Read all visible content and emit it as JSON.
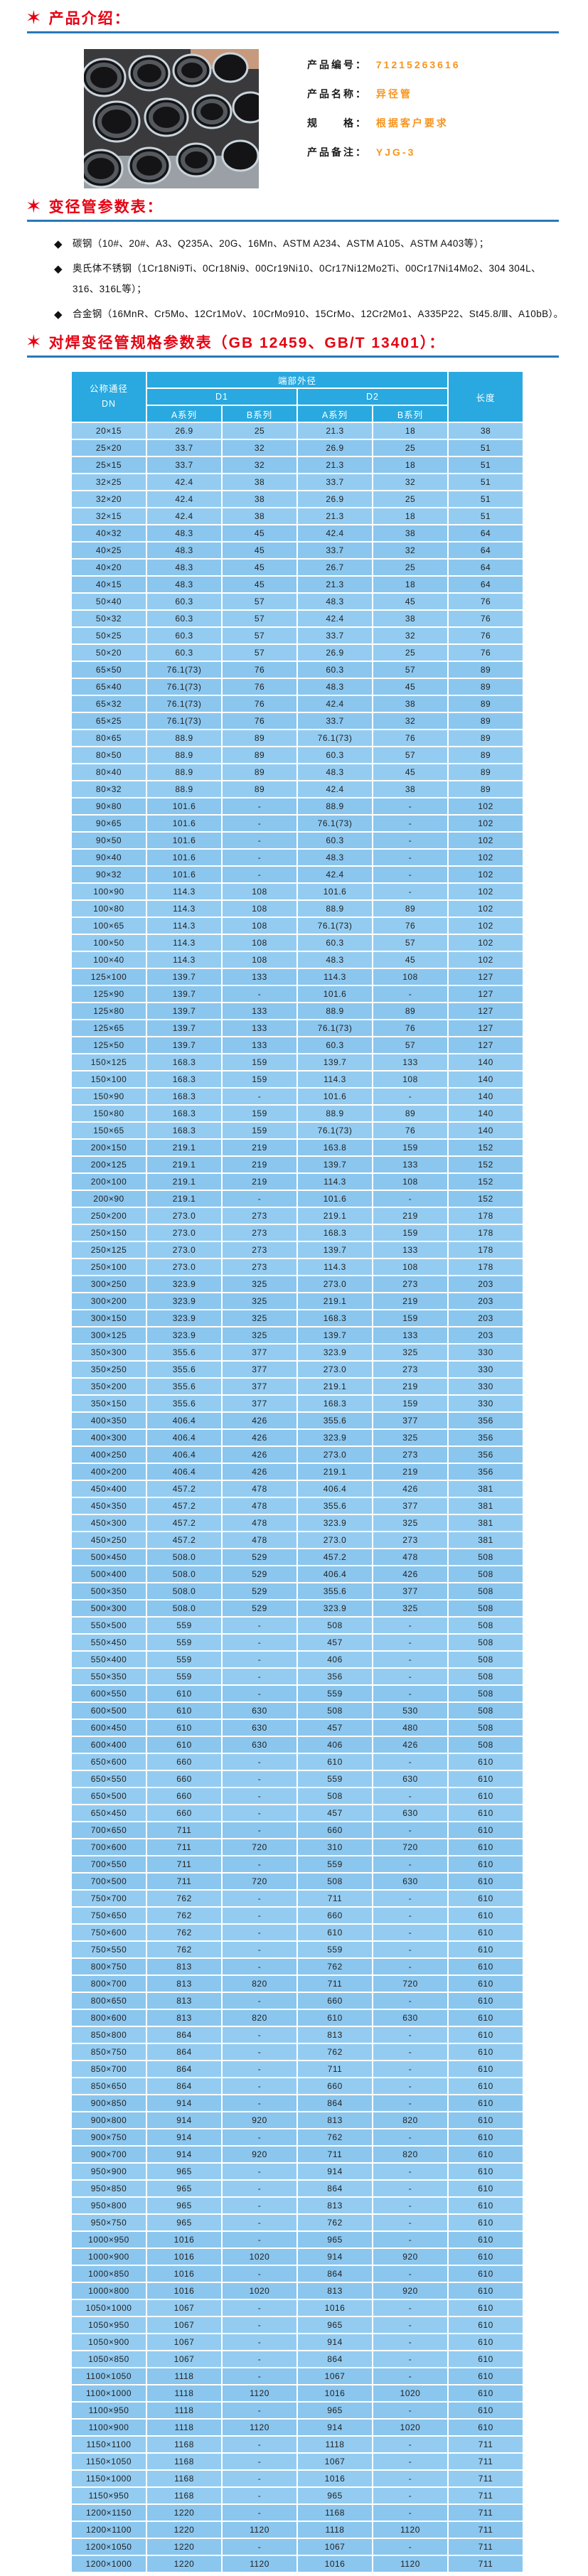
{
  "colors": {
    "title_red": "#e60012",
    "rule_blue": "#2878b8",
    "value_orange": "#f7941d",
    "table_header_blue": "#29a9e0",
    "table_row_blue": "#92cbf0"
  },
  "section_intro": {
    "star_icon": "✶",
    "title": "产品介绍："
  },
  "product": {
    "fields": [
      {
        "label": "产品编号：",
        "value": "71215263616"
      },
      {
        "label": "产品名称：",
        "value": "异径管"
      },
      {
        "label": "规　　格：",
        "value": "根据客户要求"
      },
      {
        "label": "产品备注：",
        "value": "YJG-3"
      }
    ]
  },
  "section_params": {
    "star_icon": "✶",
    "title": "变径管参数表：",
    "bullet_marker": "◆",
    "bullets": [
      "碳钢（10#、20#、A3、Q235A、20G、16Mn、ASTM A234、ASTM A105、ASTM A403等）；",
      "奥氏体不锈钢（1Cr18Ni9Ti、0Cr18Ni9、00Cr19Ni10、0Cr17Ni12Mo2Ti、00Cr17Ni14Mo2、304 304L、316、316L等）；",
      "合金钢（16MnR、Cr5Mo、12Cr1MoV、10CrMo910、15CrMo、12Cr2Mo1、A335P22、St45.8/Ⅲ、A10bB）。"
    ]
  },
  "section_spec": {
    "star_icon": "✶",
    "title": "对焊变径管规格参数表（GB 12459、GB/T 13401）：",
    "table": {
      "col_dn_line1": "公称通径",
      "col_dn_line2": "DN",
      "col_group_title": "端部外径",
      "col_d1": "D1",
      "col_d2": "D2",
      "col_series_a1": "A系列",
      "col_series_b1": "B系列",
      "col_series_a2": "A系列",
      "col_series_b2": "B系列",
      "col_length": "长度",
      "rows": [
        [
          "20×15",
          "26.9",
          "25",
          "21.3",
          "18",
          "38"
        ],
        [
          "25×20",
          "33.7",
          "32",
          "26.9",
          "25",
          "51"
        ],
        [
          "25×15",
          "33.7",
          "32",
          "21.3",
          "18",
          "51"
        ],
        [
          "32×25",
          "42.4",
          "38",
          "33.7",
          "32",
          "51"
        ],
        [
          "32×20",
          "42.4",
          "38",
          "26.9",
          "25",
          "51"
        ],
        [
          "32×15",
          "42.4",
          "38",
          "21.3",
          "18",
          "51"
        ],
        [
          "40×32",
          "48.3",
          "45",
          "42.4",
          "38",
          "64"
        ],
        [
          "40×25",
          "48.3",
          "45",
          "33.7",
          "32",
          "64"
        ],
        [
          "40×20",
          "48.3",
          "45",
          "26.7",
          "25",
          "64"
        ],
        [
          "40×15",
          "48.3",
          "45",
          "21.3",
          "18",
          "64"
        ],
        [
          "50×40",
          "60.3",
          "57",
          "48.3",
          "45",
          "76"
        ],
        [
          "50×32",
          "60.3",
          "57",
          "42.4",
          "38",
          "76"
        ],
        [
          "50×25",
          "60.3",
          "57",
          "33.7",
          "32",
          "76"
        ],
        [
          "50×20",
          "60.3",
          "57",
          "26.9",
          "25",
          "76"
        ],
        [
          "65×50",
          "76.1(73)",
          "76",
          "60.3",
          "57",
          "89"
        ],
        [
          "65×40",
          "76.1(73)",
          "76",
          "48.3",
          "45",
          "89"
        ],
        [
          "65×32",
          "76.1(73)",
          "76",
          "42.4",
          "38",
          "89"
        ],
        [
          "65×25",
          "76.1(73)",
          "76",
          "33.7",
          "32",
          "89"
        ],
        [
          "80×65",
          "88.9",
          "89",
          "76.1(73)",
          "76",
          "89"
        ],
        [
          "80×50",
          "88.9",
          "89",
          "60.3",
          "57",
          "89"
        ],
        [
          "80×40",
          "88.9",
          "89",
          "48.3",
          "45",
          "89"
        ],
        [
          "80×32",
          "88.9",
          "89",
          "42.4",
          "38",
          "89"
        ],
        [
          "90×80",
          "101.6",
          "-",
          "88.9",
          "-",
          "102"
        ],
        [
          "90×65",
          "101.6",
          "-",
          "76.1(73)",
          "-",
          "102"
        ],
        [
          "90×50",
          "101.6",
          "-",
          "60.3",
          "-",
          "102"
        ],
        [
          "90×40",
          "101.6",
          "-",
          "48.3",
          "-",
          "102"
        ],
        [
          "90×32",
          "101.6",
          "-",
          "42.4",
          "-",
          "102"
        ],
        [
          "100×90",
          "114.3",
          "108",
          "101.6",
          "-",
          "102"
        ],
        [
          "100×80",
          "114.3",
          "108",
          "88.9",
          "89",
          "102"
        ],
        [
          "100×65",
          "114.3",
          "108",
          "76.1(73)",
          "76",
          "102"
        ],
        [
          "100×50",
          "114.3",
          "108",
          "60.3",
          "57",
          "102"
        ],
        [
          "100×40",
          "114.3",
          "108",
          "48.3",
          "45",
          "102"
        ],
        [
          "125×100",
          "139.7",
          "133",
          "114.3",
          "108",
          "127"
        ],
        [
          "125×90",
          "139.7",
          "-",
          "101.6",
          "-",
          "127"
        ],
        [
          "125×80",
          "139.7",
          "133",
          "88.9",
          "89",
          "127"
        ],
        [
          "125×65",
          "139.7",
          "133",
          "76.1(73)",
          "76",
          "127"
        ],
        [
          "125×50",
          "139.7",
          "133",
          "60.3",
          "57",
          "127"
        ],
        [
          "150×125",
          "168.3",
          "159",
          "139.7",
          "133",
          "140"
        ],
        [
          "150×100",
          "168.3",
          "159",
          "114.3",
          "108",
          "140"
        ],
        [
          "150×90",
          "168.3",
          "-",
          "101.6",
          "-",
          "140"
        ],
        [
          "150×80",
          "168.3",
          "159",
          "88.9",
          "89",
          "140"
        ],
        [
          "150×65",
          "168.3",
          "159",
          "76.1(73)",
          "76",
          "140"
        ],
        [
          "200×150",
          "219.1",
          "219",
          "163.8",
          "159",
          "152"
        ],
        [
          "200×125",
          "219.1",
          "219",
          "139.7",
          "133",
          "152"
        ],
        [
          "200×100",
          "219.1",
          "219",
          "114.3",
          "108",
          "152"
        ],
        [
          "200×90",
          "219.1",
          "-",
          "101.6",
          "-",
          "152"
        ],
        [
          "250×200",
          "273.0",
          "273",
          "219.1",
          "219",
          "178"
        ],
        [
          "250×150",
          "273.0",
          "273",
          "168.3",
          "159",
          "178"
        ],
        [
          "250×125",
          "273.0",
          "273",
          "139.7",
          "133",
          "178"
        ],
        [
          "250×100",
          "273.0",
          "273",
          "114.3",
          "108",
          "178"
        ],
        [
          "300×250",
          "323.9",
          "325",
          "273.0",
          "273",
          "203"
        ],
        [
          "300×200",
          "323.9",
          "325",
          "219.1",
          "219",
          "203"
        ],
        [
          "300×150",
          "323.9",
          "325",
          "168.3",
          "159",
          "203"
        ],
        [
          "300×125",
          "323.9",
          "325",
          "139.7",
          "133",
          "203"
        ],
        [
          "350×300",
          "355.6",
          "377",
          "323.9",
          "325",
          "330"
        ],
        [
          "350×250",
          "355.6",
          "377",
          "273.0",
          "273",
          "330"
        ],
        [
          "350×200",
          "355.6",
          "377",
          "219.1",
          "219",
          "330"
        ],
        [
          "350×150",
          "355.6",
          "377",
          "168.3",
          "159",
          "330"
        ],
        [
          "400×350",
          "406.4",
          "426",
          "355.6",
          "377",
          "356"
        ],
        [
          "400×300",
          "406.4",
          "426",
          "323.9",
          "325",
          "356"
        ],
        [
          "400×250",
          "406.4",
          "426",
          "273.0",
          "273",
          "356"
        ],
        [
          "400×200",
          "406.4",
          "426",
          "219.1",
          "219",
          "356"
        ],
        [
          "450×400",
          "457.2",
          "478",
          "406.4",
          "426",
          "381"
        ],
        [
          "450×350",
          "457.2",
          "478",
          "355.6",
          "377",
          "381"
        ],
        [
          "450×300",
          "457.2",
          "478",
          "323.9",
          "325",
          "381"
        ],
        [
          "450×250",
          "457.2",
          "478",
          "273.0",
          "273",
          "381"
        ],
        [
          "500×450",
          "508.0",
          "529",
          "457.2",
          "478",
          "508"
        ],
        [
          "500×400",
          "508.0",
          "529",
          "406.4",
          "426",
          "508"
        ],
        [
          "500×350",
          "508.0",
          "529",
          "355.6",
          "377",
          "508"
        ],
        [
          "500×300",
          "508.0",
          "529",
          "323.9",
          "325",
          "508"
        ],
        [
          "550×500",
          "559",
          "-",
          "508",
          "-",
          "508"
        ],
        [
          "550×450",
          "559",
          "-",
          "457",
          "-",
          "508"
        ],
        [
          "550×400",
          "559",
          "-",
          "406",
          "-",
          "508"
        ],
        [
          "550×350",
          "559",
          "-",
          "356",
          "-",
          "508"
        ],
        [
          "600×550",
          "610",
          "-",
          "559",
          "-",
          "508"
        ],
        [
          "600×500",
          "610",
          "630",
          "508",
          "530",
          "508"
        ],
        [
          "600×450",
          "610",
          "630",
          "457",
          "480",
          "508"
        ],
        [
          "600×400",
          "610",
          "630",
          "406",
          "426",
          "508"
        ],
        [
          "650×600",
          "660",
          "-",
          "610",
          "-",
          "610"
        ],
        [
          "650×550",
          "660",
          "-",
          "559",
          "630",
          "610"
        ],
        [
          "650×500",
          "660",
          "-",
          "508",
          "-",
          "610"
        ],
        [
          "650×450",
          "660",
          "-",
          "457",
          "630",
          "610"
        ],
        [
          "700×650",
          "711",
          "-",
          "660",
          "-",
          "610"
        ],
        [
          "700×600",
          "711",
          "720",
          "310",
          "720",
          "610"
        ],
        [
          "700×550",
          "711",
          "-",
          "559",
          "-",
          "610"
        ],
        [
          "700×500",
          "711",
          "720",
          "508",
          "630",
          "610"
        ],
        [
          "750×700",
          "762",
          "-",
          "711",
          "-",
          "610"
        ],
        [
          "750×650",
          "762",
          "-",
          "660",
          "-",
          "610"
        ],
        [
          "750×600",
          "762",
          "-",
          "610",
          "-",
          "610"
        ],
        [
          "750×550",
          "762",
          "-",
          "559",
          "-",
          "610"
        ],
        [
          "800×750",
          "813",
          "-",
          "762",
          "-",
          "610"
        ],
        [
          "800×700",
          "813",
          "820",
          "711",
          "720",
          "610"
        ],
        [
          "800×650",
          "813",
          "-",
          "660",
          "-",
          "610"
        ],
        [
          "800×600",
          "813",
          "820",
          "610",
          "630",
          "610"
        ],
        [
          "850×800",
          "864",
          "-",
          "813",
          "-",
          "610"
        ],
        [
          "850×750",
          "864",
          "-",
          "762",
          "-",
          "610"
        ],
        [
          "850×700",
          "864",
          "-",
          "711",
          "-",
          "610"
        ],
        [
          "850×650",
          "864",
          "-",
          "660",
          "-",
          "610"
        ],
        [
          "900×850",
          "914",
          "-",
          "864",
          "-",
          "610"
        ],
        [
          "900×800",
          "914",
          "920",
          "813",
          "820",
          "610"
        ],
        [
          "900×750",
          "914",
          "-",
          "762",
          "-",
          "610"
        ],
        [
          "900×700",
          "914",
          "920",
          "711",
          "820",
          "610"
        ],
        [
          "950×900",
          "965",
          "-",
          "914",
          "-",
          "610"
        ],
        [
          "950×850",
          "965",
          "-",
          "864",
          "-",
          "610"
        ],
        [
          "950×800",
          "965",
          "-",
          "813",
          "-",
          "610"
        ],
        [
          "950×750",
          "965",
          "-",
          "762",
          "-",
          "610"
        ],
        [
          "1000×950",
          "1016",
          "-",
          "965",
          "-",
          "610"
        ],
        [
          "1000×900",
          "1016",
          "1020",
          "914",
          "920",
          "610"
        ],
        [
          "1000×850",
          "1016",
          "-",
          "864",
          "-",
          "610"
        ],
        [
          "1000×800",
          "1016",
          "1020",
          "813",
          "920",
          "610"
        ],
        [
          "1050×1000",
          "1067",
          "-",
          "1016",
          "-",
          "610"
        ],
        [
          "1050×950",
          "1067",
          "-",
          "965",
          "-",
          "610"
        ],
        [
          "1050×900",
          "1067",
          "-",
          "914",
          "-",
          "610"
        ],
        [
          "1050×850",
          "1067",
          "-",
          "864",
          "-",
          "610"
        ],
        [
          "1100×1050",
          "1118",
          "-",
          "1067",
          "-",
          "610"
        ],
        [
          "1100×1000",
          "1118",
          "1120",
          "1016",
          "1020",
          "610"
        ],
        [
          "1100×950",
          "1118",
          "-",
          "965",
          "-",
          "610"
        ],
        [
          "1100×900",
          "1118",
          "1120",
          "914",
          "1020",
          "610"
        ],
        [
          "1150×1100",
          "1168",
          "-",
          "1118",
          "-",
          "711"
        ],
        [
          "1150×1050",
          "1168",
          "-",
          "1067",
          "-",
          "711"
        ],
        [
          "1150×1000",
          "1168",
          "-",
          "1016",
          "-",
          "711"
        ],
        [
          "1150×950",
          "1168",
          "-",
          "965",
          "-",
          "711"
        ],
        [
          "1200×1150",
          "1220",
          "-",
          "1168",
          "-",
          "711"
        ],
        [
          "1200×1100",
          "1220",
          "1120",
          "1118",
          "1120",
          "711"
        ],
        [
          "1200×1050",
          "1220",
          "-",
          "1067",
          "-",
          "711"
        ],
        [
          "1200×1000",
          "1220",
          "1120",
          "1016",
          "1120",
          "711"
        ]
      ]
    }
  }
}
